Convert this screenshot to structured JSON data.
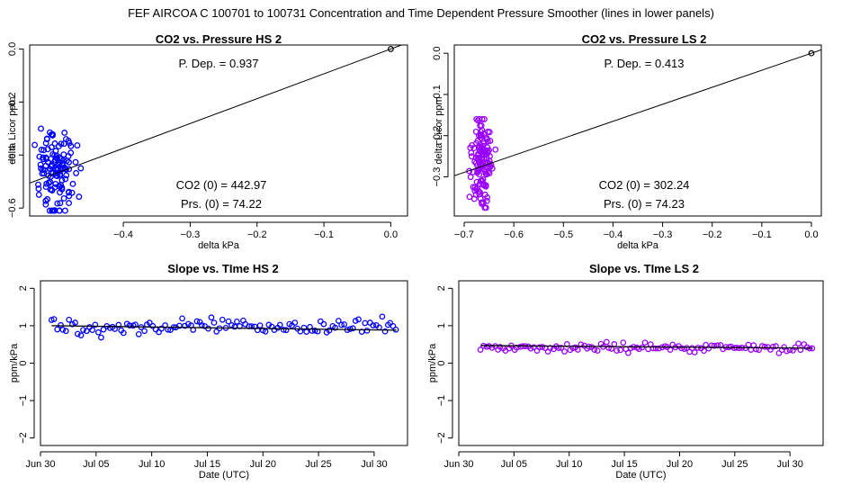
{
  "figure_title": "FEF   AIRCOA C   100701 to 100731   Concentration and Time Dependent Pressure Smoother (lines in lower panels)",
  "colors": {
    "hs": "#0000ff",
    "ls": "#9900ff",
    "line": "#000000"
  },
  "chart_data": [
    {
      "type": "scatter",
      "title": "CO2 vs. Pressure HS 2",
      "xlabel": "delta kPa",
      "ylabel": "delta Licor ppm",
      "xlim": [
        -0.54,
        0.025
      ],
      "ylim": [
        -0.63,
        0.015
      ],
      "xticks": [
        -0.4,
        -0.3,
        -0.2,
        -0.1,
        0.0
      ],
      "xtick_labels": [
        "−0.4",
        "−0.3",
        "−0.2",
        "−0.1",
        "0.0"
      ],
      "yticks": [
        -0.6,
        -0.4,
        -0.2,
        0.0
      ],
      "ytick_labels": [
        "−0.6",
        "−0.4",
        "−0.2",
        "0.0"
      ],
      "color": "hs",
      "annotations": [
        "P. Dep. =  0.937",
        "CO2 (0) =  442.97",
        "Prs. (0) = 74.22"
      ],
      "fit_line": {
        "slope": 0.937,
        "intercept": 0
      },
      "origin_point": [
        0,
        0
      ],
      "x_center": -0.5,
      "x_spread": 0.025,
      "y_center": -0.47,
      "y_spread": 0.08,
      "y_min": -0.61,
      "y_max": -0.28,
      "n_points": 130
    },
    {
      "type": "scatter",
      "title": "CO2 vs. Pressure LS 2",
      "xlabel": "delta kPa",
      "ylabel": "delta Licor ppm",
      "xlim": [
        -0.72,
        0.02
      ],
      "ylim": [
        -0.395,
        0.02
      ],
      "xticks": [
        -0.7,
        -0.6,
        -0.5,
        -0.4,
        -0.3,
        -0.2,
        -0.1,
        0.0
      ],
      "xtick_labels": [
        "−0.7",
        "−0.6",
        "−0.5",
        "−0.4",
        "−0.3",
        "−0.2",
        "−0.1",
        "0.0"
      ],
      "yticks": [
        -0.3,
        -0.2,
        -0.1,
        0.0
      ],
      "ytick_labels": [
        "−0.3",
        "−0.2",
        "−0.1",
        "0.0"
      ],
      "color": "ls",
      "annotations": [
        "P. Dep. =  0.413",
        "CO2 (0) =  302.24",
        "Prs. (0) = 74.23"
      ],
      "fit_line": {
        "slope": 0.413,
        "intercept": 0
      },
      "origin_point": [
        0,
        0
      ],
      "x_center": -0.665,
      "x_spread": 0.02,
      "y_center": -0.27,
      "y_spread": 0.06,
      "y_min": -0.375,
      "y_max": -0.16,
      "n_points": 130
    },
    {
      "type": "scatter",
      "title": "Slope vs. TIme HS 2",
      "xlabel": "Date (UTC)",
      "ylabel": "ppm/kPa",
      "x_axis": "date",
      "xlim": [
        "2010-06-30",
        "2010-08-02"
      ],
      "ylim": [
        -2.2,
        2.2
      ],
      "xticks": [
        "2010-06-30",
        "2010-07-05",
        "2010-07-10",
        "2010-07-15",
        "2010-07-20",
        "2010-07-25",
        "2010-07-30"
      ],
      "xtick_labels": [
        "Jun 30",
        "Jul 05",
        "Jul 10",
        "Jul 15",
        "Jul 20",
        "Jul 25",
        "Jul 30"
      ],
      "yticks": [
        -2,
        -1,
        0,
        1,
        2
      ],
      "ytick_labels": [
        "−2",
        "−1",
        "0",
        "1",
        "2"
      ],
      "color": "hs",
      "smoother": {
        "x": [
          "2010-07-01",
          "2010-08-01"
        ],
        "y": [
          1.0,
          0.88
        ]
      },
      "date_range": [
        "2010-07-01",
        "2010-08-01"
      ],
      "y_center": 0.97,
      "y_spread": 0.14,
      "n_points": 120
    },
    {
      "type": "scatter",
      "title": "Slope vs. TIme LS 2",
      "xlabel": "Date (UTC)",
      "ylabel": "ppm/kPa",
      "x_axis": "date",
      "xlim": [
        "2010-06-30",
        "2010-08-02"
      ],
      "ylim": [
        -2.2,
        2.2
      ],
      "xticks": [
        "2010-06-30",
        "2010-07-05",
        "2010-07-10",
        "2010-07-15",
        "2010-07-20",
        "2010-07-25",
        "2010-07-30"
      ],
      "xtick_labels": [
        "Jun 30",
        "Jul 05",
        "Jul 10",
        "Jul 15",
        "Jul 20",
        "Jul 25",
        "Jul 30"
      ],
      "yticks": [
        -2,
        -1,
        0,
        1,
        2
      ],
      "ytick_labels": [
        "−2",
        "−1",
        "0",
        "1",
        "2"
      ],
      "color": "ls",
      "smoother": {
        "x": [
          "2010-07-02",
          "2010-08-01"
        ],
        "y": [
          0.47,
          0.4
        ]
      },
      "date_range": [
        "2010-07-02",
        "2010-08-01"
      ],
      "y_center": 0.42,
      "y_spread": 0.07,
      "n_points": 120
    }
  ]
}
